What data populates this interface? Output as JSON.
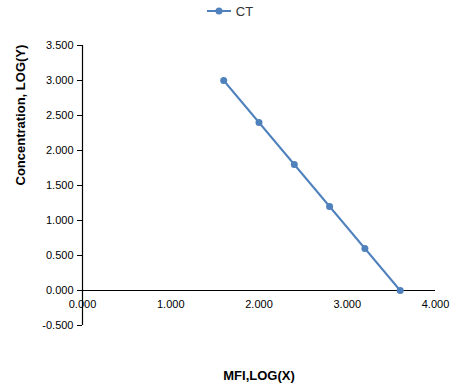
{
  "chart_data": {
    "type": "line",
    "xlabel": "MFI,LOG(X)",
    "ylabel": "Concentration, LOG(Y)",
    "legend": "top",
    "x": [
      1.6,
      2.0,
      2.4,
      2.8,
      3.2,
      3.6
    ],
    "series": [
      {
        "name": "CT",
        "color": "#4f81bd",
        "marker": "circle",
        "values": [
          3.0,
          2.4,
          1.8,
          1.2,
          0.6,
          0.0
        ]
      }
    ],
    "xlim": [
      0,
      4
    ],
    "xticks": [
      {
        "value": 0,
        "label": "0.000"
      },
      {
        "value": 1,
        "label": "1.000"
      },
      {
        "value": 2,
        "label": "2.000"
      },
      {
        "value": 3,
        "label": "3.000"
      },
      {
        "value": 4,
        "label": "4.000"
      }
    ],
    "ylim": [
      -0.5,
      3.5
    ],
    "yticks": [
      {
        "value": -0.5,
        "label": "-0.500"
      },
      {
        "value": 0,
        "label": "0.000"
      },
      {
        "value": 0.5,
        "label": "0.500"
      },
      {
        "value": 1,
        "label": "1.000"
      },
      {
        "value": 1.5,
        "label": "1.500"
      },
      {
        "value": 2,
        "label": "2.000"
      },
      {
        "value": 2.5,
        "label": "2.500"
      },
      {
        "value": 3,
        "label": "3.000"
      },
      {
        "value": 3.5,
        "label": "3.500"
      }
    ]
  }
}
